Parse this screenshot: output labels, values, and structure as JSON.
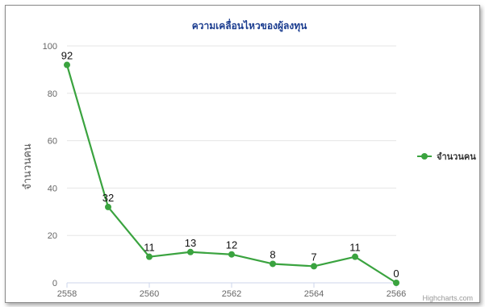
{
  "chart_data": {
    "type": "line",
    "title": "ความเคลื่อนไหวของผู้ลงทุน",
    "ylabel": "จำนวนคน",
    "xlabel": "",
    "x": [
      2558,
      2559,
      2560,
      2561,
      2562,
      2563,
      2564,
      2565,
      2566
    ],
    "series": [
      {
        "name": "จำนวนคน",
        "values": [
          92,
          32,
          11,
          13,
          12,
          8,
          7,
          11,
          0
        ]
      }
    ],
    "xlim": [
      2558,
      2566
    ],
    "ylim": [
      0,
      100
    ],
    "xticks": [
      2558,
      2560,
      2562,
      2564,
      2566
    ],
    "yticks": [
      0,
      20,
      40,
      60,
      80,
      100
    ],
    "grid": true,
    "legend_position": "right",
    "credit": "Highcharts.com",
    "colors": {
      "series": "#3aa33f",
      "title": "#1a3c8f",
      "grid": "#e6e6e6"
    }
  }
}
